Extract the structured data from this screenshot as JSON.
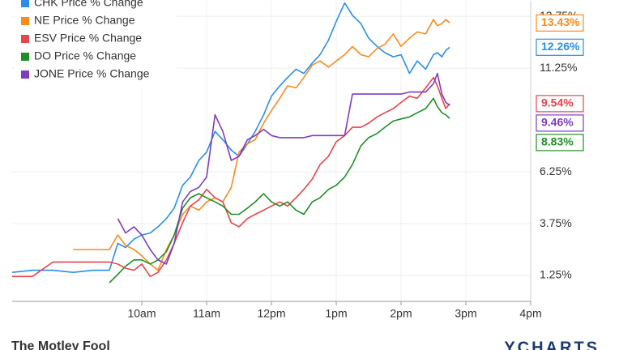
{
  "chart_data": {
    "type": "line",
    "x": [
      8,
      8.31,
      8.63,
      8.94,
      9.25,
      9.5,
      9.63,
      9.75,
      9.88,
      10,
      10.13,
      10.25,
      10.38,
      10.5,
      10.63,
      10.75,
      10.88,
      11,
      11.13,
      11.25,
      11.38,
      11.5,
      11.63,
      11.75,
      11.88,
      12,
      12.13,
      12.25,
      12.38,
      12.5,
      12.63,
      12.75,
      12.88,
      13,
      13.13,
      13.25,
      13.38,
      13.5,
      13.63,
      13.75,
      13.88,
      14,
      14.13,
      14.25,
      14.38,
      14.5,
      14.56,
      14.63,
      14.69,
      14.75
    ],
    "series": [
      {
        "name": "CHK Price % Change",
        "color": "#2a8fe8",
        "end_label": "12.26%",
        "values": [
          1.4,
          1.5,
          1.5,
          1.4,
          1.5,
          1.5,
          2.8,
          2.6,
          3.0,
          3.2,
          3.3,
          3.6,
          4.0,
          4.5,
          5.6,
          6.0,
          6.8,
          7.2,
          8.2,
          7.8,
          7.3,
          7.0,
          7.6,
          8.2,
          9.0,
          9.9,
          10.4,
          10.8,
          11.2,
          11.0,
          11.5,
          11.9,
          12.6,
          13.5,
          14.4,
          13.8,
          13.4,
          12.7,
          12.3,
          12.0,
          11.8,
          11.9,
          11.0,
          11.6,
          11.2,
          11.9,
          12.0,
          11.8,
          12.1,
          12.26
        ]
      },
      {
        "name": "NE Price % Change",
        "color": "#f98b1e",
        "end_label": "13.43%",
        "values": [
          null,
          null,
          null,
          2.5,
          2.5,
          2.5,
          3.2,
          2.7,
          2.5,
          2.2,
          1.8,
          1.5,
          2.5,
          3.2,
          4.2,
          4.6,
          4.4,
          4.8,
          5.0,
          4.8,
          5.5,
          7.2,
          7.6,
          7.8,
          8.6,
          9.2,
          9.8,
          10.4,
          10.3,
          10.8,
          11.4,
          11.6,
          11.3,
          11.6,
          11.9,
          12.3,
          11.9,
          11.8,
          12.2,
          12.4,
          12.9,
          12.3,
          12.7,
          13.0,
          12.9,
          13.6,
          13.3,
          13.4,
          13.6,
          13.43
        ]
      },
      {
        "name": "ESV Price % Change",
        "color": "#e8444c",
        "end_label": "9.54%",
        "values": [
          1.2,
          1.2,
          1.9,
          1.9,
          1.9,
          1.9,
          1.8,
          1.6,
          1.5,
          1.8,
          1.2,
          1.4,
          2.0,
          2.8,
          3.8,
          4.6,
          4.9,
          5.4,
          5.0,
          4.8,
          3.8,
          3.6,
          4.0,
          4.2,
          4.4,
          4.6,
          4.8,
          4.6,
          5.0,
          5.4,
          5.9,
          6.6,
          7.0,
          7.7,
          8.0,
          8.4,
          8.4,
          8.6,
          8.9,
          9.1,
          9.3,
          9.6,
          9.9,
          9.8,
          10.3,
          10.8,
          10.4,
          9.8,
          9.3,
          9.54
        ]
      },
      {
        "name": "DO Price % Change",
        "color": "#1f8f24",
        "end_label": "8.83%",
        "values": [
          null,
          null,
          null,
          null,
          null,
          0.9,
          1.3,
          1.7,
          2.0,
          2.0,
          1.8,
          2.0,
          2.4,
          3.2,
          4.5,
          5.0,
          5.2,
          5.0,
          4.8,
          4.6,
          4.2,
          4.2,
          4.5,
          4.8,
          5.2,
          4.8,
          4.6,
          4.8,
          4.4,
          4.2,
          4.8,
          5.0,
          5.4,
          5.6,
          6.0,
          6.6,
          7.5,
          7.9,
          8.1,
          8.4,
          8.7,
          8.8,
          8.9,
          9.1,
          9.3,
          9.8,
          9.4,
          9.1,
          9.0,
          8.83
        ]
      },
      {
        "name": "JONE Price % Change",
        "color": "#7d3cc4",
        "end_label": "9.46%",
        "values": [
          null,
          null,
          null,
          null,
          null,
          null,
          4.0,
          3.3,
          3.6,
          3.2,
          2.5,
          2.0,
          1.8,
          2.8,
          4.8,
          5.3,
          5.5,
          6.0,
          9.0,
          8.2,
          6.8,
          7.0,
          7.8,
          8.0,
          8.3,
          8.0,
          7.9,
          7.9,
          7.9,
          7.9,
          8.0,
          8.0,
          8.0,
          8.0,
          8.0,
          10.0,
          10.0,
          10.0,
          10.0,
          10.0,
          10.0,
          10.0,
          10.1,
          10.1,
          10.1,
          10.5,
          11.0,
          10.0,
          9.6,
          9.46
        ]
      }
    ],
    "xlim": [
      8,
      16
    ],
    "ylim": [
      0,
      14.5
    ],
    "xticks": [
      {
        "value": 10,
        "label": "10am"
      },
      {
        "value": 11,
        "label": "11am"
      },
      {
        "value": 12,
        "label": "12pm"
      },
      {
        "value": 13,
        "label": "1pm"
      },
      {
        "value": 14,
        "label": "2pm"
      },
      {
        "value": 15,
        "label": "3pm"
      },
      {
        "value": 16,
        "label": "4pm"
      }
    ],
    "yticks": [
      {
        "value": 1.25,
        "label": "1.25%"
      },
      {
        "value": 3.75,
        "label": "3.75%"
      },
      {
        "value": 6.25,
        "label": "6.25%"
      },
      {
        "value": 11.25,
        "label": "11.25%"
      },
      {
        "value": 13.75,
        "label": "13.75%"
      }
    ],
    "grid": true,
    "legend": "top-left",
    "footer_left": "The Motley Fool",
    "footer_right": "YCHARTS"
  }
}
